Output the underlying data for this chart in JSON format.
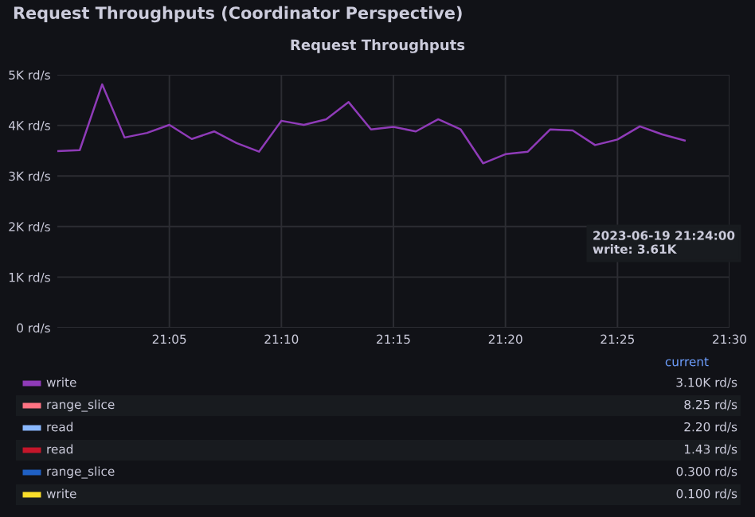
{
  "chart_data": {
    "type": "line",
    "title": "Request Throughputs (Coordinator Perspective)",
    "subtitle": "Request Throughputs",
    "x": [
      "2023-06-19T21:00",
      "2023-06-19T21:01",
      "2023-06-19T21:02",
      "2023-06-19T21:03",
      "2023-06-19T21:04",
      "2023-06-19T21:05",
      "2023-06-19T21:06",
      "2023-06-19T21:07",
      "2023-06-19T21:08",
      "2023-06-19T21:09",
      "2023-06-19T21:10",
      "2023-06-19T21:11",
      "2023-06-19T21:12",
      "2023-06-19T21:13",
      "2023-06-19T21:14",
      "2023-06-19T21:15",
      "2023-06-19T21:16",
      "2023-06-19T21:17",
      "2023-06-19T21:18",
      "2023-06-19T21:19",
      "2023-06-19T21:20",
      "2023-06-19T21:21",
      "2023-06-19T21:22",
      "2023-06-19T21:23",
      "2023-06-19T21:24",
      "2023-06-19T21:25",
      "2023-06-19T21:26",
      "2023-06-19T21:27",
      "2023-06-19T21:28"
    ],
    "series": [
      {
        "name": "write",
        "color": "#8f3bb8",
        "values": [
          3490,
          3510,
          4810,
          3760,
          3850,
          4010,
          3730,
          3880,
          3650,
          3480,
          4090,
          4010,
          4120,
          4460,
          3920,
          3970,
          3880,
          4120,
          3920,
          3250,
          3430,
          3480,
          3920,
          3900,
          3610,
          3720,
          3980,
          3820,
          3700
        ]
      },
      {
        "name": "range_slice",
        "color": "#ff7383",
        "values": [
          null,
          null,
          null,
          null,
          null,
          null,
          null,
          null,
          null,
          null,
          null,
          null,
          null,
          null,
          null,
          null,
          null,
          null,
          null,
          null,
          null,
          null,
          null,
          null,
          null,
          null,
          null,
          null,
          null
        ]
      },
      {
        "name": "read",
        "color": "#8ab8ff",
        "values": [
          null,
          null,
          null,
          null,
          null,
          null,
          null,
          null,
          null,
          null,
          null,
          null,
          null,
          null,
          null,
          null,
          null,
          null,
          null,
          null,
          null,
          null,
          null,
          null,
          null,
          null,
          null,
          null,
          null
        ]
      },
      {
        "name": "read",
        "color": "#c4162a",
        "values": [
          null,
          null,
          null,
          null,
          null,
          null,
          null,
          null,
          null,
          null,
          null,
          null,
          null,
          null,
          null,
          null,
          null,
          null,
          null,
          null,
          null,
          null,
          null,
          null,
          null,
          null,
          null,
          null,
          null
        ]
      },
      {
        "name": "range_slice",
        "color": "#1f60c4",
        "values": [
          null,
          null,
          null,
          null,
          null,
          null,
          null,
          null,
          null,
          null,
          null,
          null,
          null,
          null,
          null,
          null,
          null,
          null,
          null,
          null,
          null,
          null,
          null,
          null,
          null,
          null,
          null,
          null,
          null
        ]
      },
      {
        "name": "write",
        "color": "#fade2a",
        "values": [
          null,
          null,
          null,
          null,
          null,
          null,
          null,
          null,
          null,
          null,
          null,
          null,
          null,
          null,
          null,
          null,
          null,
          null,
          null,
          null,
          null,
          null,
          null,
          null,
          null,
          null,
          null,
          null,
          null
        ]
      }
    ],
    "legend_title": "current",
    "value_labels": [
      "3.10K rd/s",
      "8.25 rd/s",
      "2.20 rd/s",
      "1.43 rd/s",
      "0.300 rd/s",
      "0.100 rd/s"
    ],
    "annotations": [
      "2023-06-19 21:24:00\nwrite: 3.61K"
    ],
    "xlim": [
      "2023-06-19T21:00",
      "2023-06-19T21:30"
    ],
    "xticks": [
      {
        "value": "2023-06-19T21:05",
        "label": "21:05"
      },
      {
        "value": "2023-06-19T21:10",
        "label": "21:10"
      },
      {
        "value": "2023-06-19T21:15",
        "label": "21:15"
      },
      {
        "value": "2023-06-19T21:20",
        "label": "21:20"
      },
      {
        "value": "2023-06-19T21:25",
        "label": "21:25"
      },
      {
        "value": "2023-06-19T21:30",
        "label": "21:30"
      }
    ],
    "ylim": [
      0,
      5000
    ],
    "yticks": [
      {
        "value": 0,
        "label": "0 rd/s"
      },
      {
        "value": 1000,
        "label": "1K rd/s"
      },
      {
        "value": 2000,
        "label": "2K rd/s"
      },
      {
        "value": 3000,
        "label": "3K rd/s"
      },
      {
        "value": 4000,
        "label": "4K rd/s"
      },
      {
        "value": 5000,
        "label": "5K rd/s"
      }
    ],
    "grid": true,
    "legend": "bottom",
    "line_style": "solid",
    "marker": "none"
  }
}
